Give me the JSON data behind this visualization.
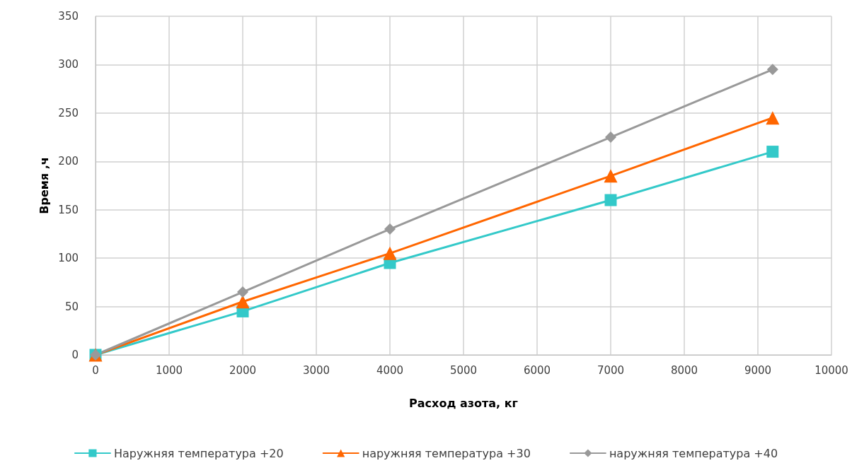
{
  "chart_data": {
    "type": "line",
    "xlabel": "Расход азота, кг",
    "ylabel": "Время ,ч",
    "xlim": [
      0,
      10000
    ],
    "xticks": [
      0,
      1000,
      2000,
      3000,
      4000,
      5000,
      6000,
      7000,
      8000,
      9000,
      10000
    ],
    "ylim": [
      0,
      350
    ],
    "yticks": [
      0,
      50,
      100,
      150,
      200,
      250,
      300,
      350
    ],
    "grid": true,
    "legend": "bottom",
    "line_style": "solid",
    "x": [
      0,
      2000,
      4000,
      7000,
      9200
    ],
    "series": [
      {
        "name": "Наружняя температура +20",
        "color": "#33c9c9",
        "marker": "square",
        "values": [
          0,
          45,
          95,
          160,
          210
        ]
      },
      {
        "name": "наружняя температура +30",
        "color": "#ff6600",
        "marker": "triangle",
        "values": [
          0,
          55,
          105,
          185,
          245
        ]
      },
      {
        "name": "наружняя температура +40",
        "color": "#999999",
        "marker": "diamond",
        "values": [
          0,
          65,
          130,
          225,
          295
        ]
      }
    ]
  }
}
